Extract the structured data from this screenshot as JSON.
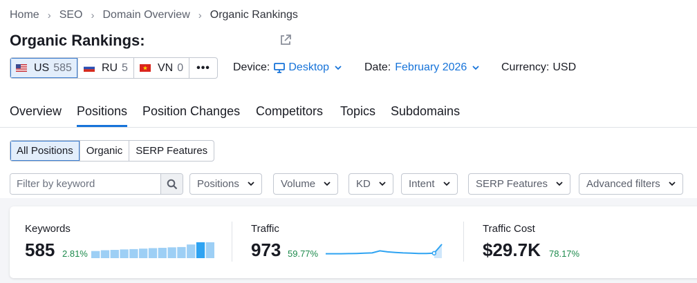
{
  "breadcrumb": [
    "Home",
    "SEO",
    "Domain Overview",
    "Organic Rankings"
  ],
  "page_title": "Organic Rankings:",
  "databases": [
    {
      "code": "US",
      "count": "585",
      "active": true
    },
    {
      "code": "RU",
      "count": "5",
      "active": false
    },
    {
      "code": "VN",
      "count": "0",
      "active": false
    }
  ],
  "device": {
    "label": "Device:",
    "value": "Desktop"
  },
  "date": {
    "label": "Date:",
    "value": "February 2026"
  },
  "currency": {
    "label": "Currency:",
    "value": "USD"
  },
  "tabs": [
    "Overview",
    "Positions",
    "Position Changes",
    "Competitors",
    "Topics",
    "Subdomains"
  ],
  "position_types": [
    "All Positions",
    "Organic",
    "SERP Features"
  ],
  "search": {
    "placeholder": "Filter by keyword"
  },
  "filters": [
    "Positions",
    "Volume",
    "KD",
    "Intent",
    "SERP Features",
    "Advanced filters"
  ],
  "metrics": {
    "keywords": {
      "label": "Keywords",
      "value": "585",
      "delta": "2.81%"
    },
    "traffic": {
      "label": "Traffic",
      "value": "973",
      "delta": "59.77%"
    },
    "traffic_cost": {
      "label": "Traffic Cost",
      "value": "$29.7K",
      "delta": "78.17%"
    }
  },
  "colors": {
    "accent": "#1673d9",
    "positive": "#1d8a4c",
    "bar": "#9dcff5",
    "bar_highlight": "#2ea3f2"
  },
  "keywords_trend": [
    0.45,
    0.5,
    0.52,
    0.55,
    0.57,
    0.6,
    0.63,
    0.65,
    0.68,
    0.7,
    0.86,
    1.0,
    1.0
  ],
  "traffic_trend": [
    0.18,
    0.18,
    0.18,
    0.19,
    0.2,
    0.22,
    0.24,
    0.4,
    0.32,
    0.28,
    0.24,
    0.22,
    0.2,
    0.2,
    0.22,
    0.9
  ]
}
